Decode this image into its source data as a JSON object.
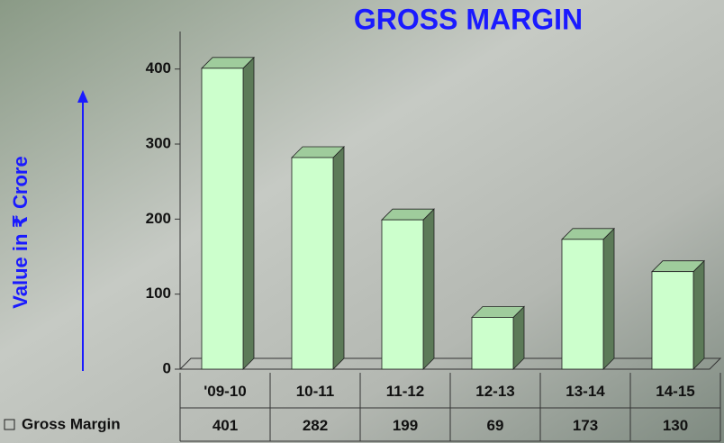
{
  "chart_data": {
    "type": "bar",
    "title": "GROSS MARGIN",
    "y_label": "Value in ₹ Crore",
    "categories": [
      "'09-10",
      "10-11",
      "11-12",
      "12-13",
      "13-14",
      "14-15"
    ],
    "series": [
      {
        "name": "Gross Margin",
        "color": "#ccffcc",
        "values": [
          401,
          282,
          199,
          69,
          173,
          130
        ]
      }
    ],
    "ylim": [
      0,
      450
    ],
    "yticks": [
      0,
      100,
      200,
      300,
      400
    ]
  }
}
